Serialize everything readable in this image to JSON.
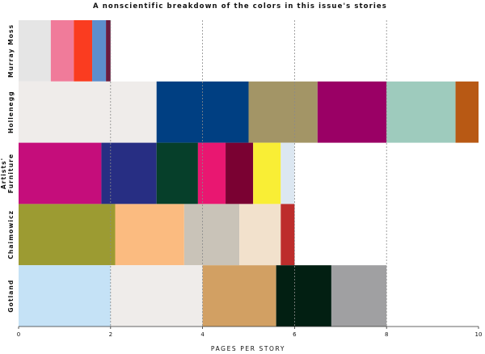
{
  "chart_data": {
    "type": "bar",
    "orientation": "horizontal",
    "stacked": true,
    "title": "A nonscientific breakdown of the colors in this issue's stories",
    "xlabel": "PAGES PER STORY",
    "ylabel": "",
    "xlim": [
      0,
      10
    ],
    "xticks": [
      0,
      2,
      4,
      6,
      8,
      10
    ],
    "grid": "vertical dashed",
    "legend": "none",
    "categories": [
      {
        "label_lines": [
          "Murray Moss"
        ],
        "segments": [
          {
            "value": 0.7,
            "color": "#e5e5e5"
          },
          {
            "value": 0.5,
            "color": "#f07b9a"
          },
          {
            "value": 0.4,
            "color": "#fa3c20"
          },
          {
            "value": 0.3,
            "color": "#5d8ecc"
          },
          {
            "value": 0.1,
            "color": "#6a1b3e"
          }
        ]
      },
      {
        "label_lines": [
          "Hollenegg"
        ],
        "segments": [
          {
            "value": 3.0,
            "color": "#efecea"
          },
          {
            "value": 2.0,
            "color": "#003f82"
          },
          {
            "value": 1.5,
            "color": "#a39566"
          },
          {
            "value": 1.5,
            "color": "#9a0065"
          },
          {
            "value": 1.5,
            "color": "#9ecbbd"
          },
          {
            "value": 0.5,
            "color": "#b85914"
          }
        ]
      },
      {
        "label_lines": [
          "Artists'",
          "Furniture"
        ],
        "segments": [
          {
            "value": 1.8,
            "color": "#c50d7b"
          },
          {
            "value": 1.2,
            "color": "#272e83"
          },
          {
            "value": 0.9,
            "color": "#063f2a"
          },
          {
            "value": 0.6,
            "color": "#e91771"
          },
          {
            "value": 0.6,
            "color": "#7a0132"
          },
          {
            "value": 0.6,
            "color": "#f9ee35"
          },
          {
            "value": 0.3,
            "color": "#dce7f1"
          }
        ]
      },
      {
        "label_lines": [
          "Chaimowicz"
        ],
        "segments": [
          {
            "value": 2.1,
            "color": "#9c9b32"
          },
          {
            "value": 1.5,
            "color": "#fbbb80"
          },
          {
            "value": 1.2,
            "color": "#c9c3b8"
          },
          {
            "value": 0.9,
            "color": "#f2e1cc"
          },
          {
            "value": 0.3,
            "color": "#bd2d2c"
          }
        ]
      },
      {
        "label_lines": [
          "Gotland"
        ],
        "segments": [
          {
            "value": 2.0,
            "color": "#c5e2f6"
          },
          {
            "value": 2.0,
            "color": "#efecea"
          },
          {
            "value": 1.6,
            "color": "#d2a063"
          },
          {
            "value": 1.2,
            "color": "#021f12"
          },
          {
            "value": 1.2,
            "color": "#a0a0a2"
          }
        ]
      }
    ]
  }
}
